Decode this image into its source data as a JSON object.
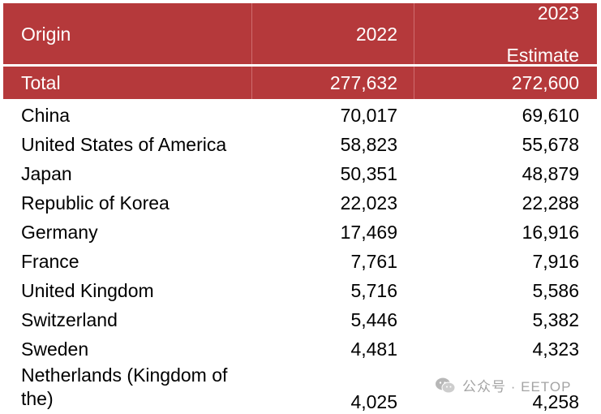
{
  "table": {
    "header": {
      "origin": "Origin",
      "col_2022": "2022",
      "col_2023_line1": "2023",
      "col_2023_line2": "Estimate"
    },
    "total": {
      "label": "Total",
      "v2022": "277,632",
      "v2023": "272,600"
    },
    "rows": [
      {
        "origin": "China",
        "v2022": "70,017",
        "v2023": "69,610"
      },
      {
        "origin": "United States of America",
        "v2022": "58,823",
        "v2023": "55,678"
      },
      {
        "origin": "Japan",
        "v2022": "50,351",
        "v2023": "48,879"
      },
      {
        "origin": "Republic of Korea",
        "v2022": "22,023",
        "v2023": "22,288"
      },
      {
        "origin": "Germany",
        "v2022": "17,469",
        "v2023": "16,916"
      },
      {
        "origin": "France",
        "v2022": "7,761",
        "v2023": "7,916"
      },
      {
        "origin": "United Kingdom",
        "v2022": "5,716",
        "v2023": "5,586"
      },
      {
        "origin": "Switzerland",
        "v2022": "5,446",
        "v2023": "5,382"
      },
      {
        "origin": "Sweden",
        "v2022": "4,481",
        "v2023": "4,323"
      },
      {
        "origin_line1": "Netherlands (Kingdom of",
        "origin_line2": "the)",
        "v2022": "4,025",
        "v2023": "4,258"
      }
    ]
  },
  "watermark": {
    "text": "公众号 · EETOP",
    "icon": "wechat-icon"
  },
  "colors": {
    "header_bg": "#b5393b",
    "header_text": "#ffffff",
    "watermark": "#9a9a9a"
  }
}
